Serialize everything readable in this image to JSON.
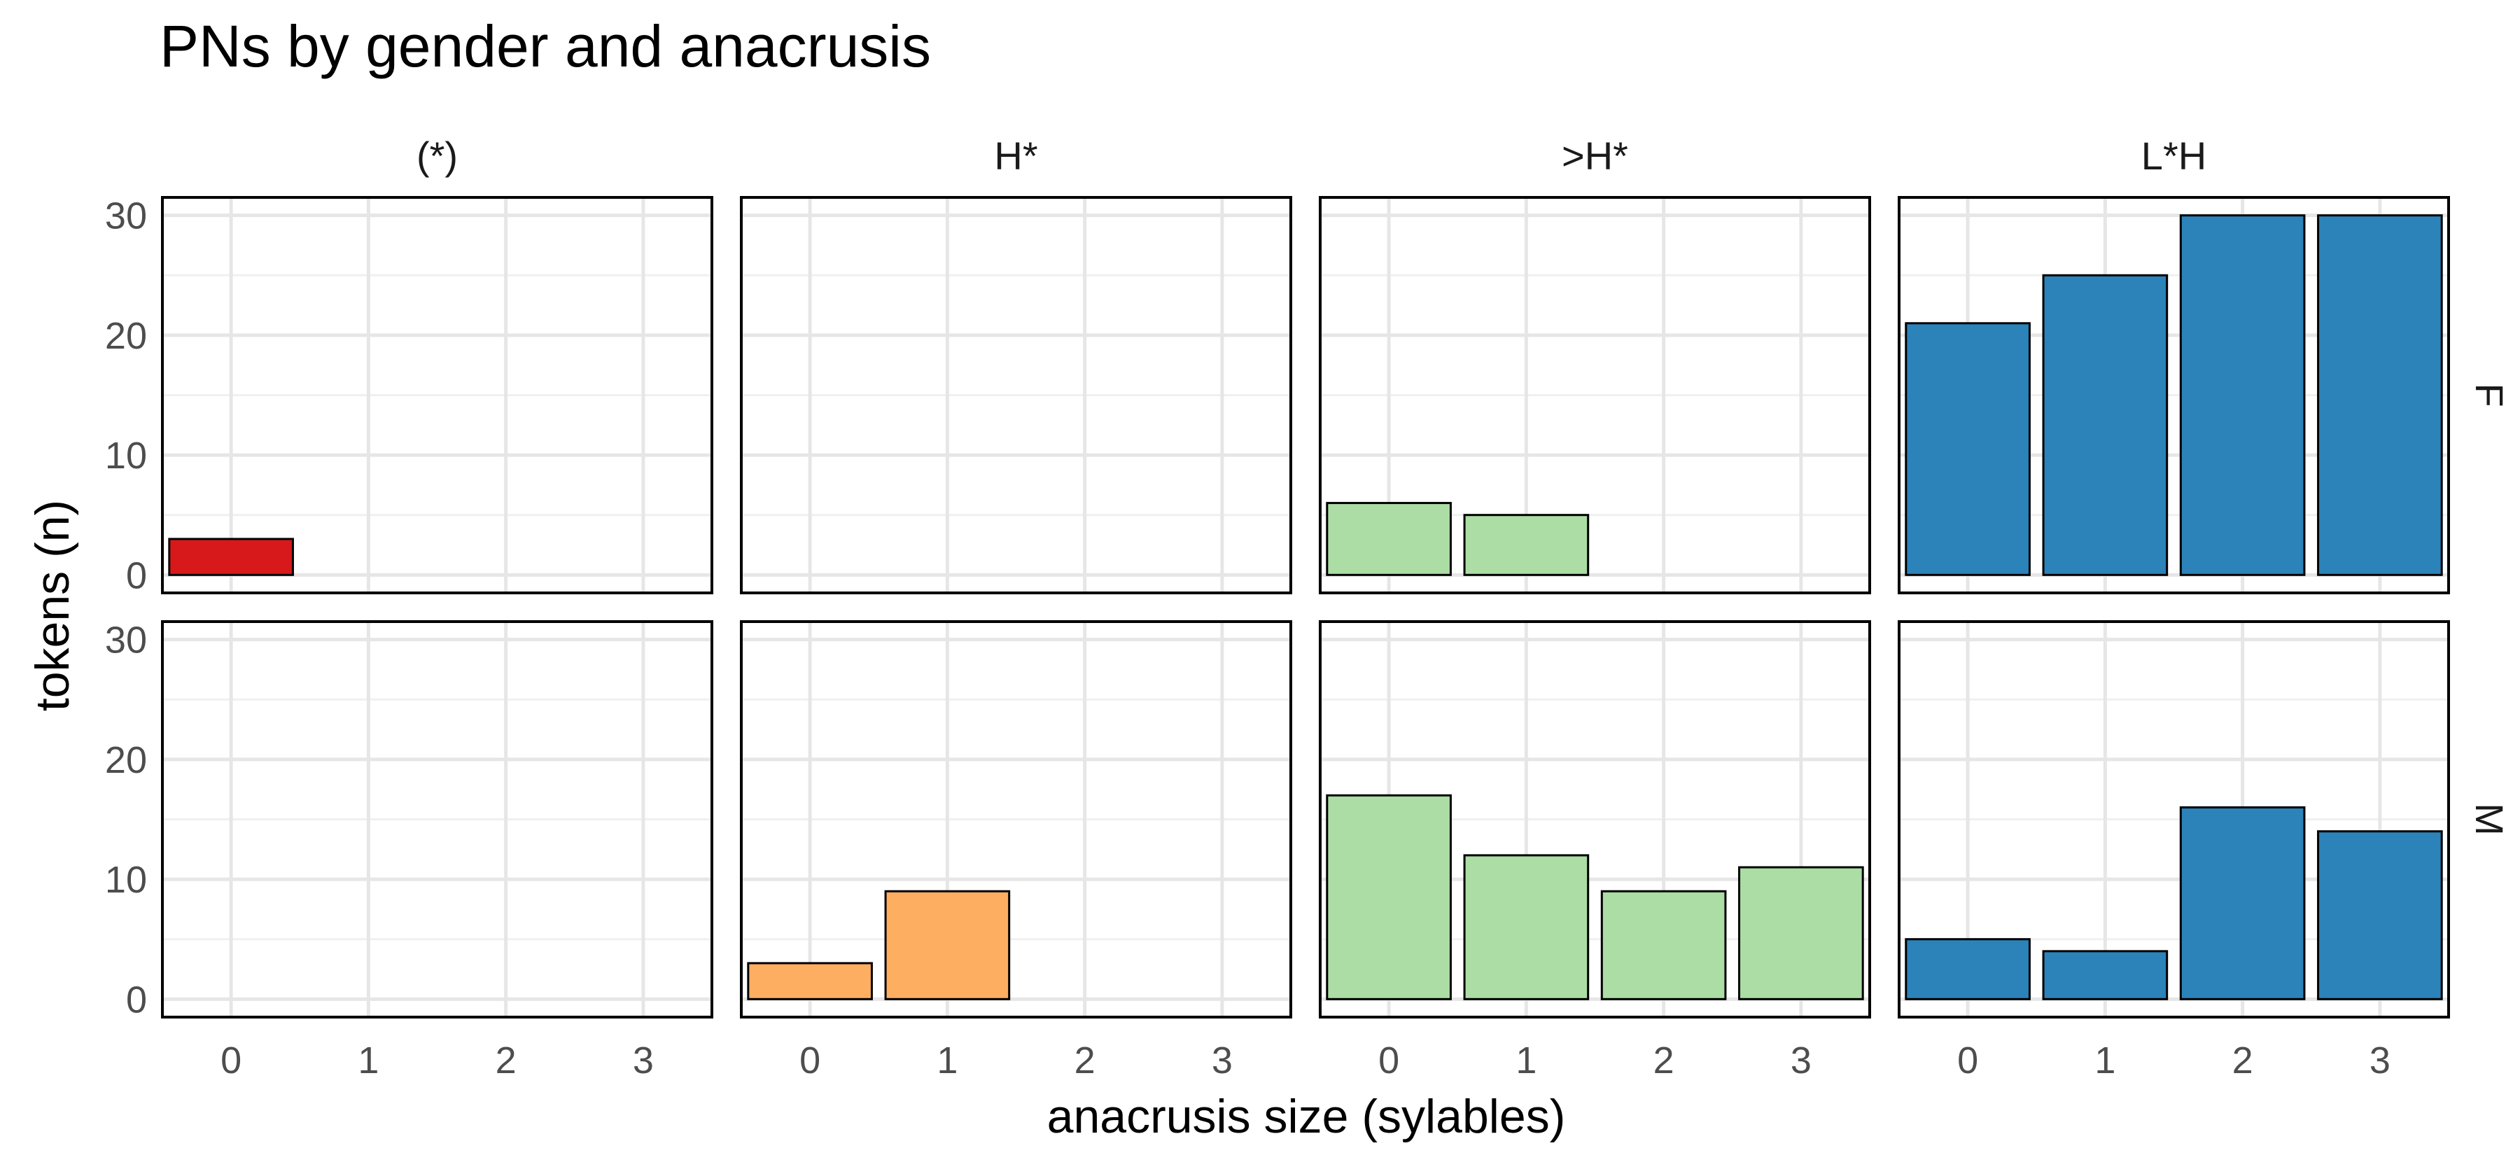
{
  "chart_data": {
    "type": "bar",
    "title": "PNs by gender and anacrusis",
    "xlabel": "anacrusis size (sylables)",
    "ylabel": "tokens (n)",
    "categories": [
      "0",
      "1",
      "2",
      "3"
    ],
    "ylim": [
      -1.5,
      31.5
    ],
    "yticks": [
      0,
      10,
      20,
      30
    ],
    "grid": true,
    "legend": "none",
    "facet_columns": [
      "(*)",
      "H*",
      ">H*",
      "L*H"
    ],
    "facet_rows": [
      "F",
      "M"
    ],
    "colors": {
      "(*)": "#d7191c",
      "H*": "#fdae61",
      ">H*": "#abdda4",
      "L*H": "#2b83ba"
    },
    "panels": [
      {
        "column": "(*)",
        "row": "F",
        "values": [
          3,
          0,
          0,
          0
        ]
      },
      {
        "column": "H*",
        "row": "F",
        "values": [
          0,
          0,
          0,
          0
        ]
      },
      {
        "column": ">H*",
        "row": "F",
        "values": [
          6,
          5,
          0,
          0
        ]
      },
      {
        "column": "L*H",
        "row": "F",
        "values": [
          21,
          25,
          30,
          30
        ]
      },
      {
        "column": "(*)",
        "row": "M",
        "values": [
          0,
          0,
          0,
          0
        ]
      },
      {
        "column": "H*",
        "row": "M",
        "values": [
          3,
          9,
          0,
          0
        ]
      },
      {
        "column": ">H*",
        "row": "M",
        "values": [
          17,
          12,
          9,
          11
        ]
      },
      {
        "column": "L*H",
        "row": "M",
        "values": [
          5,
          4,
          16,
          14
        ]
      }
    ]
  }
}
